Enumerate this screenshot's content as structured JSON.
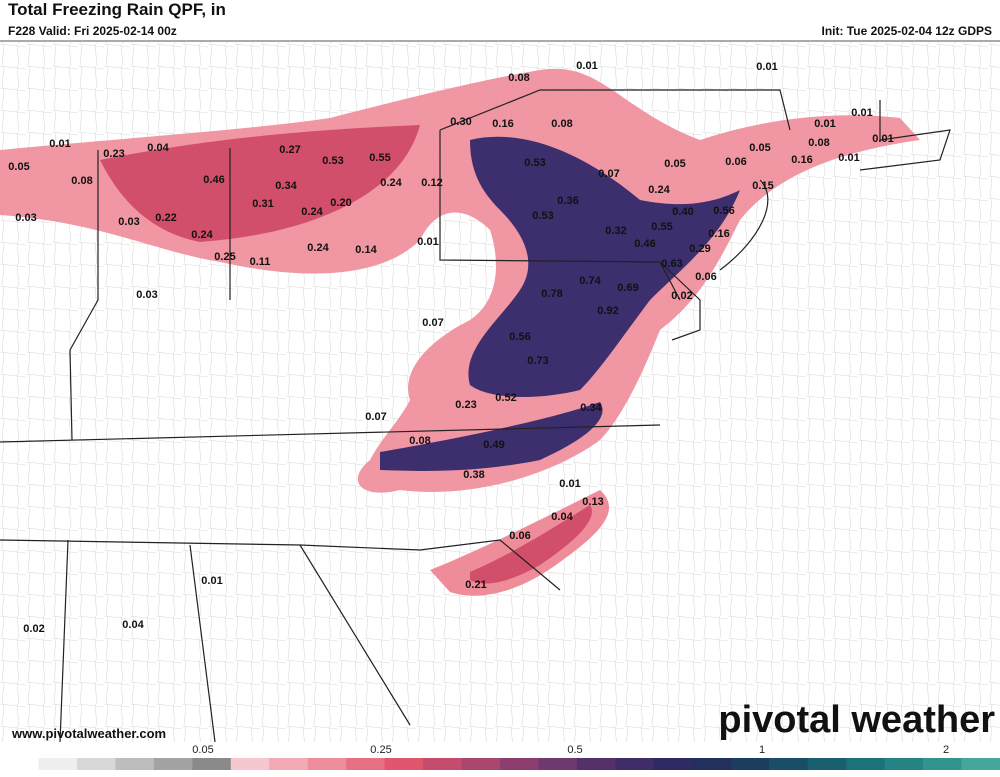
{
  "header": {
    "title": "Total Freezing Rain QPF, in",
    "valid": "F228 Valid: Fri 2025-02-14 00z",
    "init": "Init: Tue 2025-02-04 12z GDPS"
  },
  "map": {
    "labels": [
      "0.08",
      "0.01",
      "0.01",
      "0.30",
      "0.16",
      "0.08",
      "0.01",
      "0.23",
      "0.04",
      "0.27",
      "0.53",
      "0.55",
      "0.53",
      "0.05",
      "0.08",
      "0.46",
      "0.34",
      "0.24",
      "0.12",
      "0.01",
      "0.01",
      "0.01",
      "0.08",
      "0.05",
      "0.06",
      "0.16",
      "0.01",
      "0.05",
      "0.07",
      "0.15",
      "0.24",
      "0.31",
      "0.20",
      "0.24",
      "0.36",
      "0.53",
      "0.40",
      "0.56",
      "0.03",
      "0.03",
      "0.22",
      "0.24",
      "0.32",
      "0.55",
      "0.16",
      "0.46",
      "0.01",
      "0.24",
      "0.14",
      "0.29",
      "0.25",
      "0.11",
      "0.63",
      "0.06",
      "0.74",
      "0.69",
      "0.02",
      "0.78",
      "0.03",
      "0.92",
      "0.07",
      "0.56",
      "0.73",
      "0.52",
      "0.23",
      "0.34",
      "0.07",
      "0.08",
      "0.49",
      "0.38",
      "0.01",
      "0.13",
      "0.04",
      "0.06",
      "0.21",
      "0.01",
      "0.04",
      "0.02"
    ]
  },
  "colorbar": {
    "ticks": [
      "0.05",
      "0.25",
      "0.5",
      "1",
      "2"
    ]
  },
  "footer": {
    "website": "www.pivotalweather.com",
    "logo": "pivotal weather"
  }
}
